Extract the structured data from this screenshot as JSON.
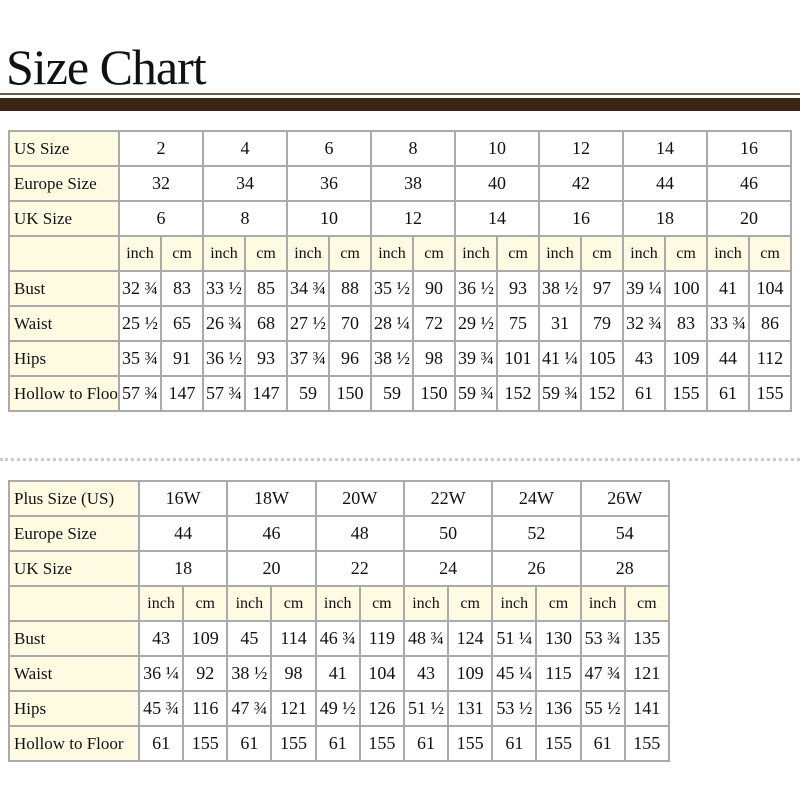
{
  "title": "Size Chart",
  "table1": {
    "rows": [
      {
        "label": "US Size",
        "cells": [
          "2",
          "4",
          "6",
          "8",
          "10",
          "12",
          "14",
          "16"
        ]
      },
      {
        "label": "Europe Size",
        "cells": [
          "32",
          "34",
          "36",
          "38",
          "40",
          "42",
          "44",
          "46"
        ]
      },
      {
        "label": "UK Size",
        "cells": [
          "6",
          "8",
          "10",
          "12",
          "14",
          "16",
          "18",
          "20"
        ]
      },
      {
        "cells": [
          "inch",
          "cm",
          "inch",
          "cm",
          "inch",
          "cm",
          "inch",
          "cm",
          "inch",
          "cm",
          "inch",
          "cm",
          "inch",
          "cm",
          "inch",
          "cm"
        ]
      },
      {
        "label": "Bust",
        "cells": [
          "32 ¾",
          "83",
          "33 ½",
          "85",
          "34 ¾",
          "88",
          "35 ½",
          "90",
          "36 ½",
          "93",
          "38 ½",
          "97",
          "39 ¼",
          "100",
          "41",
          "104"
        ]
      },
      {
        "label": "Waist",
        "cells": [
          "25 ½",
          "65",
          "26 ¾",
          "68",
          "27 ½",
          "70",
          "28 ¼",
          "72",
          "29 ½",
          "75",
          "31",
          "79",
          "32 ¾",
          "83",
          "33 ¾",
          "86"
        ]
      },
      {
        "label": "Hips",
        "cells": [
          "35 ¾",
          "91",
          "36 ½",
          "93",
          "37 ¾",
          "96",
          "38 ½",
          "98",
          "39 ¾",
          "101",
          "41 ¼",
          "105",
          "43",
          "109",
          "44",
          "112"
        ]
      },
      {
        "label": "Hollow to Floor",
        "cells": [
          "57 ¾",
          "147",
          "57 ¾",
          "147",
          "59",
          "150",
          "59",
          "150",
          "59 ¾",
          "152",
          "59 ¾",
          "152",
          "61",
          "155",
          "61",
          "155"
        ]
      }
    ]
  },
  "table2": {
    "rows": [
      {
        "label": "Plus Size (US)",
        "cells": [
          "16W",
          "18W",
          "20W",
          "22W",
          "24W",
          "26W"
        ]
      },
      {
        "label": "Europe Size",
        "cells": [
          "44",
          "46",
          "48",
          "50",
          "52",
          "54"
        ]
      },
      {
        "label": "UK Size",
        "cells": [
          "18",
          "20",
          "22",
          "24",
          "26",
          "28"
        ]
      },
      {
        "cells": [
          "inch",
          "cm",
          "inch",
          "cm",
          "inch",
          "cm",
          "inch",
          "cm",
          "inch",
          "cm",
          "inch",
          "cm"
        ]
      },
      {
        "label": "Bust",
        "cells": [
          "43",
          "109",
          "45",
          "114",
          "46 ¾",
          "119",
          "48 ¾",
          "124",
          "51 ¼",
          "130",
          "53 ¾",
          "135"
        ]
      },
      {
        "label": "Waist",
        "cells": [
          "36 ¼",
          "92",
          "38 ½",
          "98",
          "41",
          "104",
          "43",
          "109",
          "45 ¼",
          "115",
          "47 ¾",
          "121"
        ]
      },
      {
        "label": "Hips",
        "cells": [
          "45 ¾",
          "116",
          "47 ¾",
          "121",
          "49 ½",
          "126",
          "51 ½",
          "131",
          "53 ½",
          "136",
          "55 ½",
          "141"
        ]
      },
      {
        "label": "Hollow to Floor",
        "cells": [
          "61",
          "155",
          "61",
          "155",
          "61",
          "155",
          "61",
          "155",
          "61",
          "155",
          "61",
          "155"
        ]
      }
    ]
  }
}
